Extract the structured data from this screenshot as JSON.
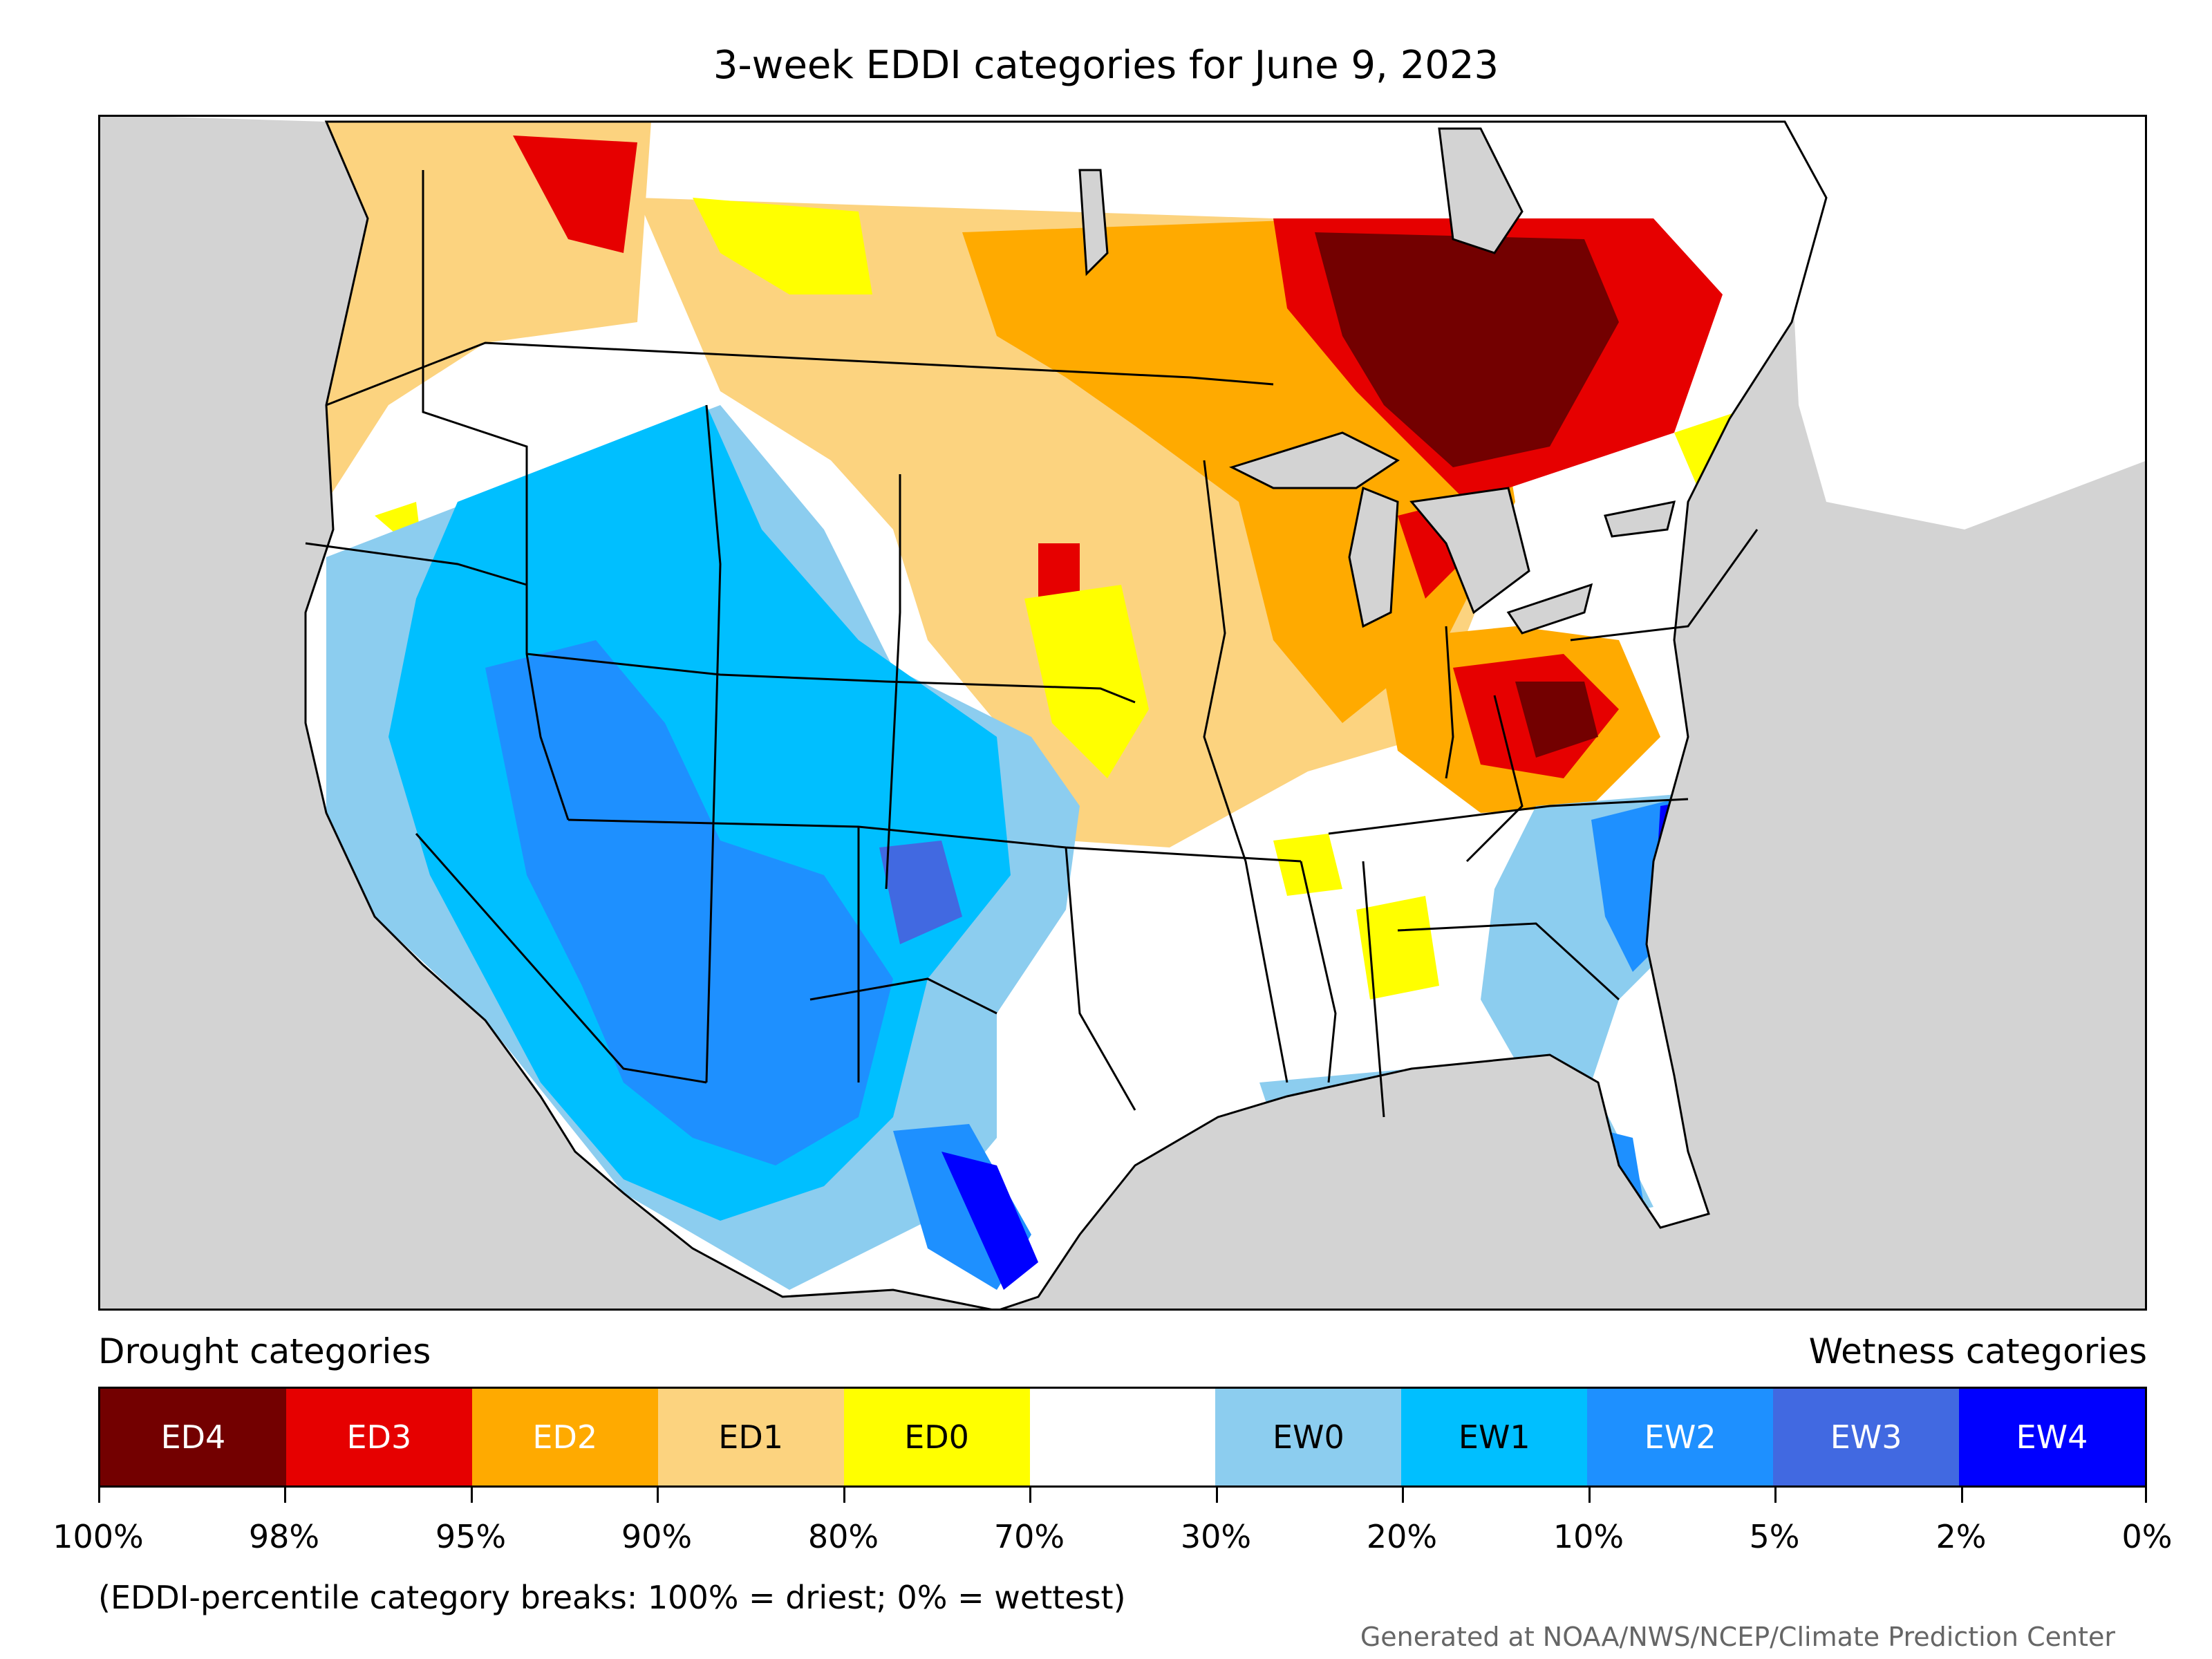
{
  "title": "3-week EDDI categories for June 9, 2023",
  "legend": {
    "drought_heading": "Drought categories",
    "wetness_heading": "Wetness categories",
    "categories": [
      {
        "label": "ED4",
        "color": "#730000",
        "text_color": "#ffffff"
      },
      {
        "label": "ED3",
        "color": "#e60000",
        "text_color": "#ffffff"
      },
      {
        "label": "ED2",
        "color": "#ffaa00",
        "text_color": "#ffffff"
      },
      {
        "label": "ED1",
        "color": "#fcd37f",
        "text_color": "#000000"
      },
      {
        "label": "ED0",
        "color": "#ffff00",
        "text_color": "#000000"
      },
      {
        "label": "",
        "color": "#ffffff",
        "text_color": "#000000"
      },
      {
        "label": "EW0",
        "color": "#8ccdef",
        "text_color": "#000000"
      },
      {
        "label": "EW1",
        "color": "#00bfff",
        "text_color": "#000000"
      },
      {
        "label": "EW2",
        "color": "#1e90ff",
        "text_color": "#ffffff"
      },
      {
        "label": "EW3",
        "color": "#4169e1",
        "text_color": "#ffffff"
      },
      {
        "label": "EW4",
        "color": "#0000ff",
        "text_color": "#ffffff"
      }
    ],
    "percentile_breaks": [
      "100%",
      "98%",
      "95%",
      "90%",
      "80%",
      "70%",
      "30%",
      "20%",
      "10%",
      "5%",
      "2%",
      "0%"
    ]
  },
  "note": "(EDDI-percentile category breaks: 100% = driest; 0% = wettest)",
  "credit": "Generated at NOAA/NWS/NCEP/Climate Prediction Center",
  "map": {
    "background_color": "#d3d3d3",
    "lake_color": "#d3d3d3",
    "border_color": "#000000"
  }
}
